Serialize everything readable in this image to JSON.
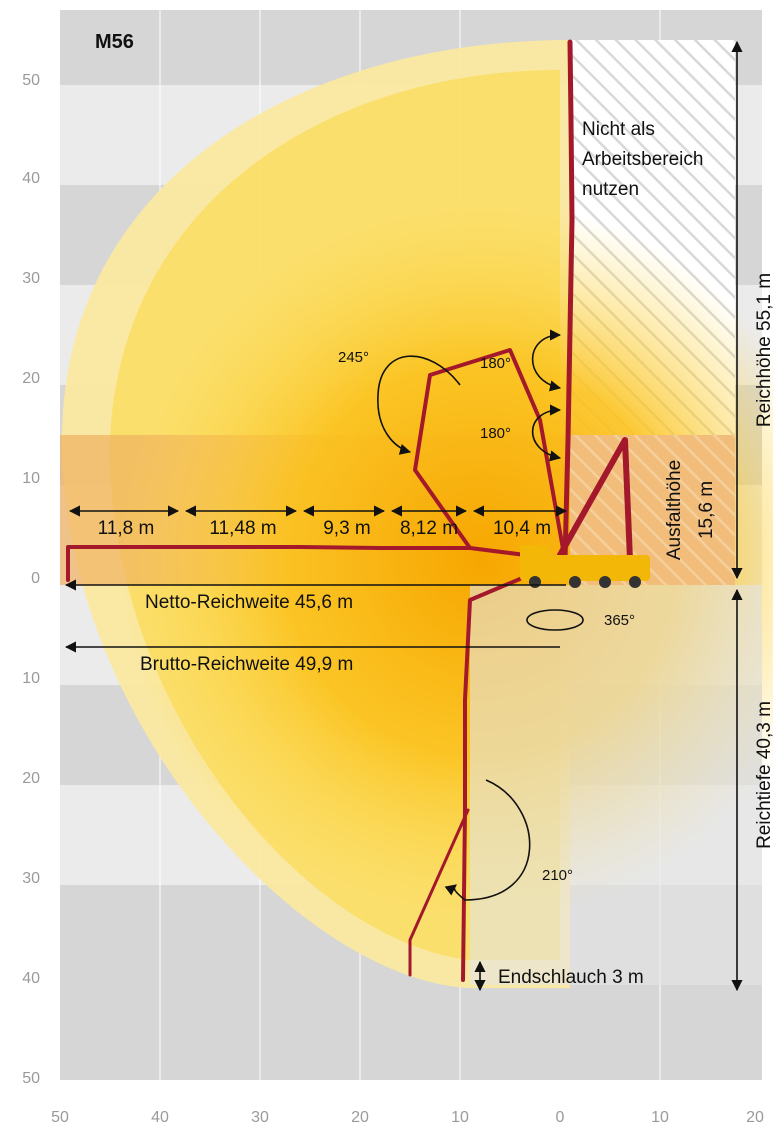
{
  "model": "M56",
  "colors": {
    "band_dark": "#d6d6d6",
    "band_light": "#ebebeb",
    "reach_outer": "#fbe9a0",
    "reach_inner": "#fcd84a",
    "core": "#f7a600",
    "boom": "#a3192b",
    "truck": "#f2b707",
    "outrigger_zone": "#f0b060",
    "arrow": "#111111"
  },
  "axes": {
    "y_ticks": [
      "50",
      "40",
      "30",
      "20",
      "10",
      "0",
      "10",
      "20",
      "30",
      "40",
      "50"
    ],
    "x_ticks": [
      "50",
      "40",
      "30",
      "20",
      "10",
      "0",
      "10",
      "20"
    ]
  },
  "no_work_zone": {
    "lines": [
      "Nicht als",
      "Arbeitsbereich",
      "nutzen"
    ]
  },
  "segments": [
    "11,8 m",
    "11,48 m",
    "9,3 m",
    "8,12 m",
    "10,4 m"
  ],
  "angles": {
    "a245": "245°",
    "a180_top": "180°",
    "a180_bottom": "180°",
    "a365": "365°",
    "a210": "210°"
  },
  "labels": {
    "netto": "Netto-Reichweite 45,6 m",
    "brutto": "Brutto-Reichweite 49,9 m",
    "reichhoehe": "Reichhöhe 55,1 m",
    "reichtiefe": "Reichtiefe 40,3 m",
    "ausfalthoehe_1": "Ausfalthöhe",
    "ausfalthoehe_2": "15,6 m",
    "endschlauch": "Endschlauch 3 m"
  }
}
